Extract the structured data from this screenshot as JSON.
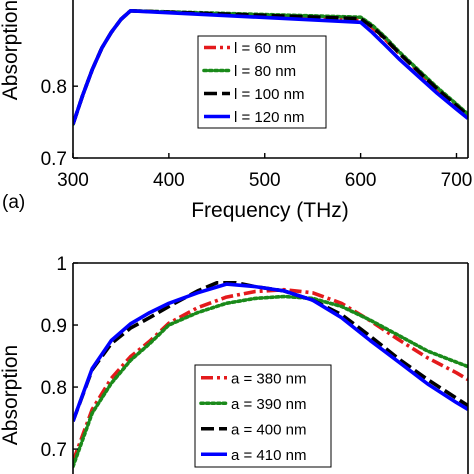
{
  "chart_data": [
    {
      "panel_tag": "(a)",
      "type": "line",
      "title": "",
      "xlabel": "Frequency (THz)",
      "ylabel": "Absorption",
      "xlim": [
        300,
        712
      ],
      "ylim": [
        0.7,
        0.92
      ],
      "xticks": [
        "300",
        "400",
        "500",
        "600",
        "700"
      ],
      "xtick_values": [
        300,
        400,
        500,
        600,
        700
      ],
      "yticks": [
        "0.7",
        "0.8"
      ],
      "ytick_values": [
        0.7,
        0.8
      ],
      "legend_position": "lower-right",
      "grid": false,
      "series": [
        {
          "name": "l = 60 nm",
          "color": "#e41a1c",
          "style": "dashdot",
          "x": [
            300,
            310,
            320,
            330,
            340,
            350,
            360,
            600,
            612,
            625,
            640,
            660,
            680,
            700,
            712
          ],
          "y": [
            0.747,
            0.787,
            0.823,
            0.853,
            0.875,
            0.893,
            0.905,
            0.893,
            0.882,
            0.866,
            0.846,
            0.821,
            0.796,
            0.773,
            0.759
          ]
        },
        {
          "name": "l = 80 nm",
          "color": "#1a8a1a",
          "style": "dotted",
          "x": [
            300,
            310,
            320,
            330,
            340,
            350,
            360,
            600,
            612,
            625,
            640,
            660,
            680,
            700,
            712
          ],
          "y": [
            0.747,
            0.787,
            0.823,
            0.853,
            0.875,
            0.893,
            0.905,
            0.896,
            0.885,
            0.869,
            0.848,
            0.823,
            0.798,
            0.775,
            0.761
          ]
        },
        {
          "name": "l = 100 nm",
          "color": "#000000",
          "style": "dashed",
          "x": [
            300,
            310,
            320,
            330,
            340,
            350,
            360,
            600,
            612,
            625,
            640,
            660,
            680,
            700,
            712
          ],
          "y": [
            0.747,
            0.787,
            0.823,
            0.853,
            0.875,
            0.893,
            0.905,
            0.894,
            0.883,
            0.867,
            0.846,
            0.821,
            0.796,
            0.773,
            0.759
          ]
        },
        {
          "name": "l = 120 nm",
          "color": "#0000ff",
          "style": "solid",
          "x": [
            300,
            310,
            320,
            330,
            340,
            350,
            360,
            600,
            612,
            625,
            640,
            660,
            680,
            700,
            712
          ],
          "y": [
            0.747,
            0.787,
            0.823,
            0.853,
            0.875,
            0.893,
            0.905,
            0.889,
            0.875,
            0.858,
            0.838,
            0.814,
            0.79,
            0.768,
            0.755
          ]
        }
      ]
    },
    {
      "panel_tag": "",
      "type": "line",
      "title": "",
      "xlabel": "",
      "ylabel": "Absorption",
      "xlim": [
        300,
        712
      ],
      "ylim": [
        0.67,
        1.0
      ],
      "xticks": [],
      "xtick_values": [],
      "yticks": [
        "0.7",
        "0.8",
        "0.9",
        "1"
      ],
      "ytick_values": [
        0.7,
        0.8,
        0.9,
        1.0
      ],
      "legend_position": "lower-right",
      "grid": false,
      "series": [
        {
          "name": "a = 380 nm",
          "color": "#e41a1c",
          "style": "dashdot",
          "x": [
            300,
            320,
            340,
            360,
            380,
            400,
            430,
            460,
            490,
            520,
            550,
            580,
            610,
            640,
            670,
            700,
            712
          ],
          "y": [
            0.68,
            0.764,
            0.814,
            0.849,
            0.874,
            0.903,
            0.928,
            0.945,
            0.954,
            0.957,
            0.952,
            0.935,
            0.907,
            0.876,
            0.847,
            0.823,
            0.812
          ]
        },
        {
          "name": "a = 390 nm",
          "color": "#1a8a1a",
          "style": "dotted",
          "x": [
            300,
            320,
            340,
            360,
            380,
            400,
            430,
            460,
            490,
            520,
            550,
            580,
            610,
            640,
            670,
            700,
            712
          ],
          "y": [
            0.672,
            0.758,
            0.806,
            0.843,
            0.87,
            0.9,
            0.92,
            0.935,
            0.943,
            0.946,
            0.943,
            0.93,
            0.908,
            0.883,
            0.858,
            0.84,
            0.833
          ]
        },
        {
          "name": "a = 400 nm",
          "color": "#000000",
          "style": "dashed",
          "x": [
            300,
            320,
            340,
            360,
            380,
            400,
            430,
            450,
            470,
            490,
            520,
            550,
            580,
            610,
            640,
            670,
            700,
            712
          ],
          "y": [
            0.745,
            0.828,
            0.87,
            0.895,
            0.912,
            0.93,
            0.955,
            0.968,
            0.968,
            0.962,
            0.955,
            0.94,
            0.917,
            0.882,
            0.845,
            0.812,
            0.782,
            0.77
          ]
        },
        {
          "name": "a = 410 nm",
          "color": "#0000ff",
          "style": "solid",
          "x": [
            300,
            320,
            340,
            360,
            380,
            400,
            430,
            460,
            490,
            520,
            550,
            580,
            610,
            640,
            670,
            700,
            712
          ],
          "y": [
            0.745,
            0.83,
            0.875,
            0.902,
            0.92,
            0.935,
            0.952,
            0.966,
            0.962,
            0.955,
            0.94,
            0.912,
            0.875,
            0.84,
            0.805,
            0.775,
            0.764
          ]
        }
      ]
    }
  ]
}
